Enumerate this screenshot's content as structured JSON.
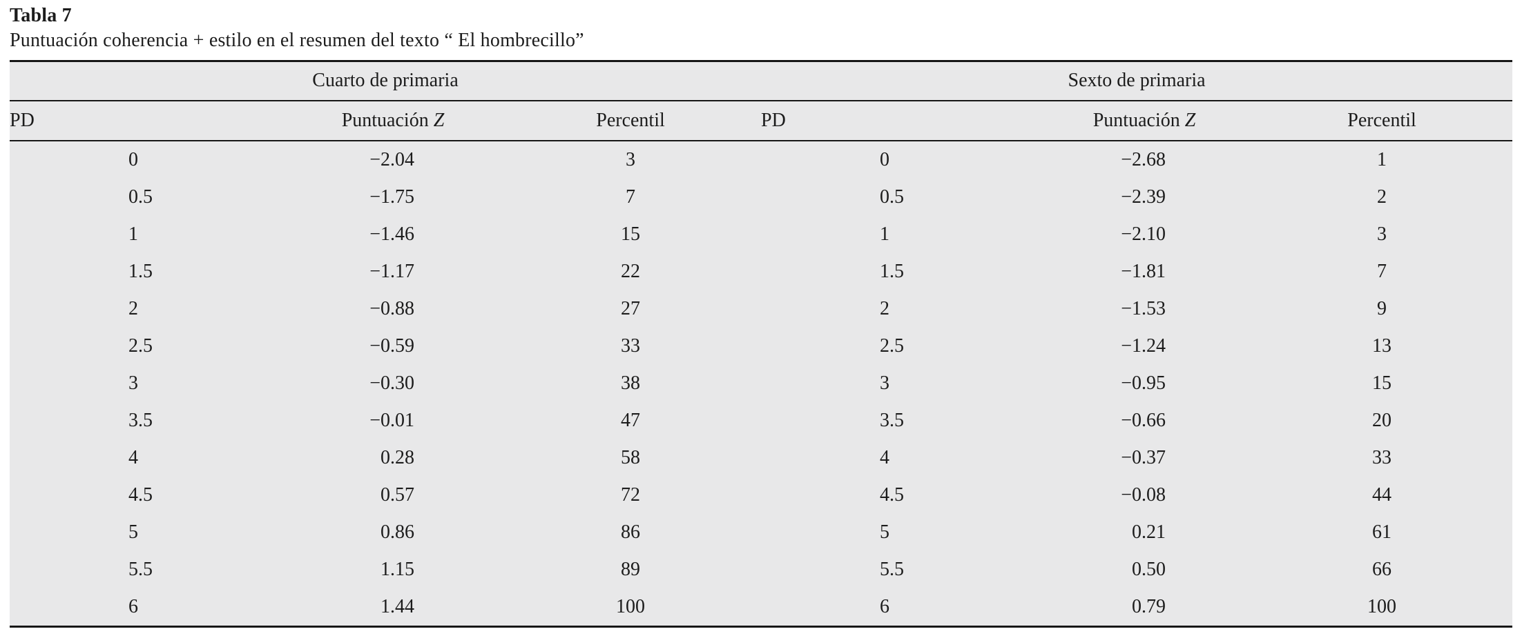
{
  "title": "Tabla 7",
  "subtitle": "Puntuación coherencia + estilo en el resumen del texto “ El hombrecillo”",
  "table": {
    "groups": [
      {
        "label": "Cuarto de primaria"
      },
      {
        "label": "Sexto de primaria"
      }
    ],
    "columns": {
      "pd": "PD",
      "z_prefix": "Puntuación ",
      "z_symbol": "Z",
      "percentil": "Percentil"
    },
    "rows": [
      {
        "c": [
          "0",
          "−2.04",
          "3"
        ],
        "s": [
          "0",
          "−2.68",
          "1"
        ]
      },
      {
        "c": [
          "0.5",
          "−1.75",
          "7"
        ],
        "s": [
          "0.5",
          "−2.39",
          "2"
        ]
      },
      {
        "c": [
          "1",
          "−1.46",
          "15"
        ],
        "s": [
          "1",
          "−2.10",
          "3"
        ]
      },
      {
        "c": [
          "1.5",
          "−1.17",
          "22"
        ],
        "s": [
          "1.5",
          "−1.81",
          "7"
        ]
      },
      {
        "c": [
          "2",
          "−0.88",
          "27"
        ],
        "s": [
          "2",
          "−1.53",
          "9"
        ]
      },
      {
        "c": [
          "2.5",
          "−0.59",
          "33"
        ],
        "s": [
          "2.5",
          "−1.24",
          "13"
        ]
      },
      {
        "c": [
          "3",
          "−0.30",
          "38"
        ],
        "s": [
          "3",
          "−0.95",
          "15"
        ]
      },
      {
        "c": [
          "3.5",
          "−0.01",
          "47"
        ],
        "s": [
          "3.5",
          "−0.66",
          "20"
        ]
      },
      {
        "c": [
          "4",
          "0.28",
          "58"
        ],
        "s": [
          "4",
          "−0.37",
          "33"
        ]
      },
      {
        "c": [
          "4.5",
          "0.57",
          "72"
        ],
        "s": [
          "4.5",
          "−0.08",
          "44"
        ]
      },
      {
        "c": [
          "5",
          "0.86",
          "86"
        ],
        "s": [
          "5",
          "0.21",
          "61"
        ]
      },
      {
        "c": [
          "5.5",
          "1.15",
          "89"
        ],
        "s": [
          "5.5",
          "0.50",
          "66"
        ]
      },
      {
        "c": [
          "6",
          "1.44",
          "100"
        ],
        "s": [
          "6",
          "0.79",
          "100"
        ]
      }
    ]
  },
  "chart_data": {
    "type": "table",
    "title": "Tabla 7. Puntuación coherencia + estilo en el resumen del texto “ El hombrecillo”",
    "groups": [
      {
        "name": "Cuarto de primaria",
        "columns": [
          "PD",
          "Puntuación Z",
          "Percentil"
        ],
        "rows": [
          [
            0,
            -2.04,
            3
          ],
          [
            0.5,
            -1.75,
            7
          ],
          [
            1,
            -1.46,
            15
          ],
          [
            1.5,
            -1.17,
            22
          ],
          [
            2,
            -0.88,
            27
          ],
          [
            2.5,
            -0.59,
            33
          ],
          [
            3,
            -0.3,
            38
          ],
          [
            3.5,
            -0.01,
            47
          ],
          [
            4,
            0.28,
            58
          ],
          [
            4.5,
            0.57,
            72
          ],
          [
            5,
            0.86,
            86
          ],
          [
            5.5,
            1.15,
            89
          ],
          [
            6,
            1.44,
            100
          ]
        ]
      },
      {
        "name": "Sexto de primaria",
        "columns": [
          "PD",
          "Puntuación Z",
          "Percentil"
        ],
        "rows": [
          [
            0,
            -2.68,
            1
          ],
          [
            0.5,
            -2.39,
            2
          ],
          [
            1,
            -2.1,
            3
          ],
          [
            1.5,
            -1.81,
            7
          ],
          [
            2,
            -1.53,
            9
          ],
          [
            2.5,
            -1.24,
            13
          ],
          [
            3,
            -0.95,
            15
          ],
          [
            3.5,
            -0.66,
            20
          ],
          [
            4,
            -0.37,
            33
          ],
          [
            4.5,
            -0.08,
            44
          ],
          [
            5,
            0.21,
            61
          ],
          [
            5.5,
            0.5,
            66
          ],
          [
            6,
            0.79,
            100
          ]
        ]
      }
    ]
  },
  "colors": {
    "table_background": "#e8e8e9",
    "rule": "#161616",
    "text": "#1c1c1c",
    "page_background": "#ffffff"
  }
}
